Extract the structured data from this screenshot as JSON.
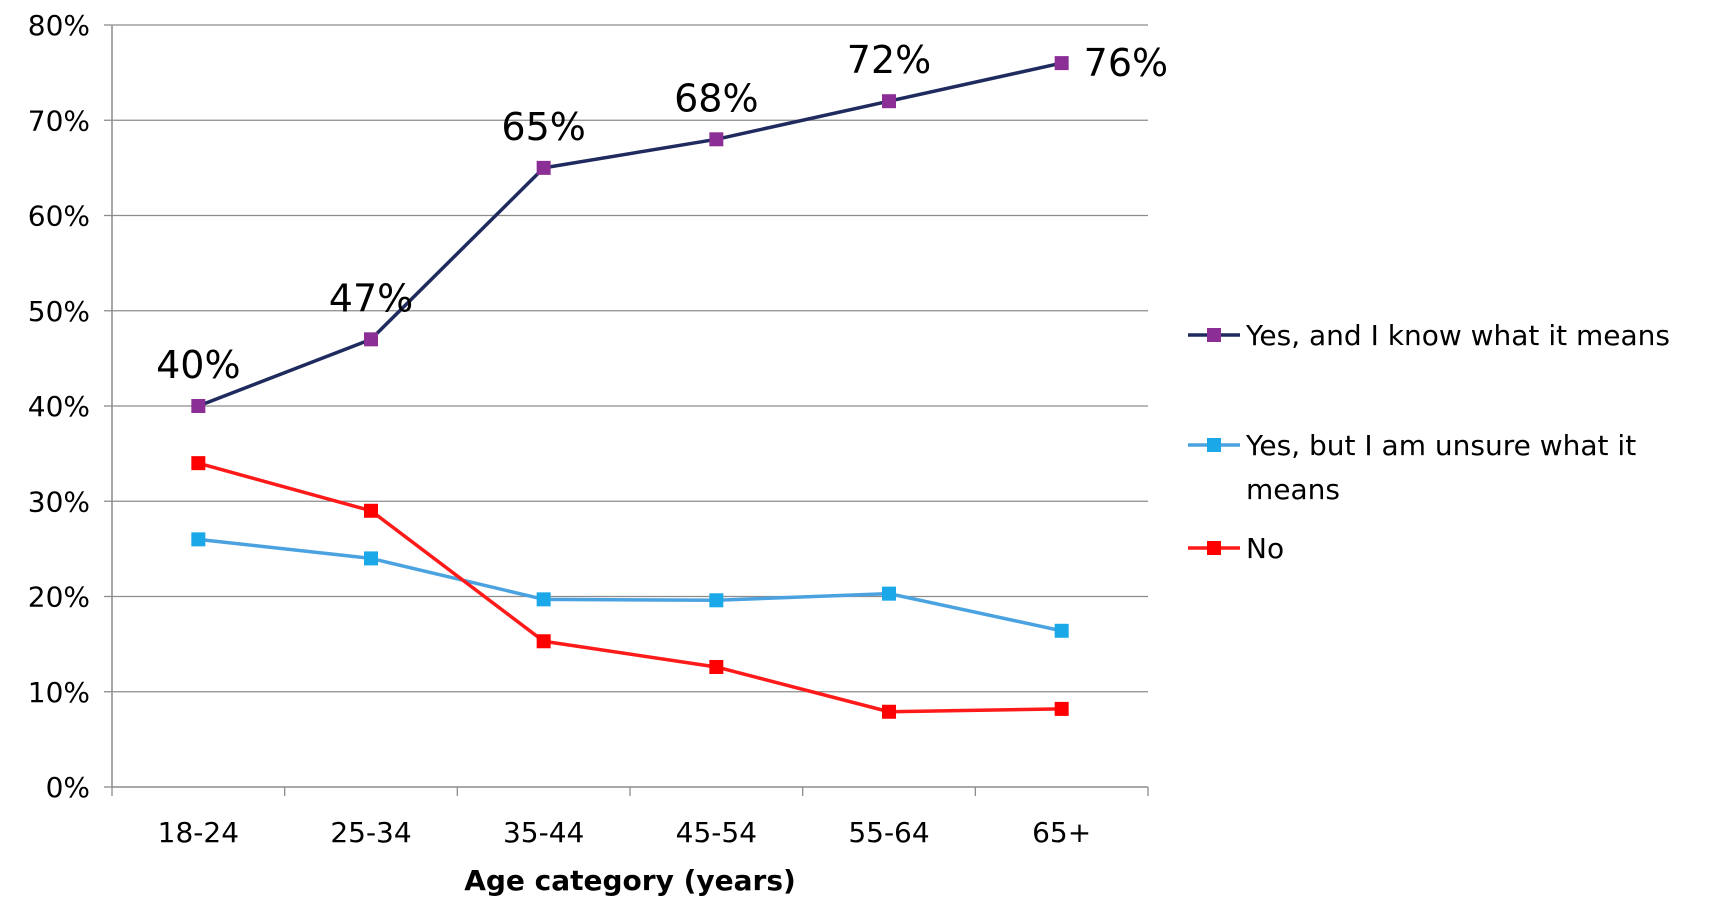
{
  "chart_data": {
    "type": "line",
    "title": "",
    "xlabel": "Age category (years)",
    "ylabel": "",
    "categories": [
      "18-24",
      "25-34",
      "35-44",
      "45-54",
      "55-64",
      "65+"
    ],
    "ylim": [
      0,
      80
    ],
    "yticks": [
      0,
      10,
      20,
      30,
      40,
      50,
      60,
      70,
      80
    ],
    "ytick_labels": [
      "0%",
      "10%",
      "20%",
      "30%",
      "40%",
      "50%",
      "60%",
      "70%",
      "80%"
    ],
    "grid": "horizontal",
    "legend_position": "right",
    "series": [
      {
        "name": "Yes, and I know what it means",
        "values": [
          40,
          47,
          65,
          68,
          72,
          76
        ],
        "data_labels": [
          "40%",
          "47%",
          "65%",
          "68%",
          "72%",
          "76%"
        ],
        "line_color": "#1f2a5e",
        "marker_color": "#8b2f97"
      },
      {
        "name": "Yes, but I am unsure what it means",
        "name_lines": [
          "Yes, but I am unsure what it",
          "means"
        ],
        "values": [
          26,
          24,
          19.7,
          19.6,
          20.3,
          16.4
        ],
        "line_color": "#4aa3e0",
        "marker_color": "#1aa8e8"
      },
      {
        "name": "No",
        "values": [
          34,
          29,
          15.3,
          12.6,
          7.9,
          8.2
        ],
        "line_color": "#ff1a1a",
        "marker_color": "#ff0000"
      }
    ]
  }
}
